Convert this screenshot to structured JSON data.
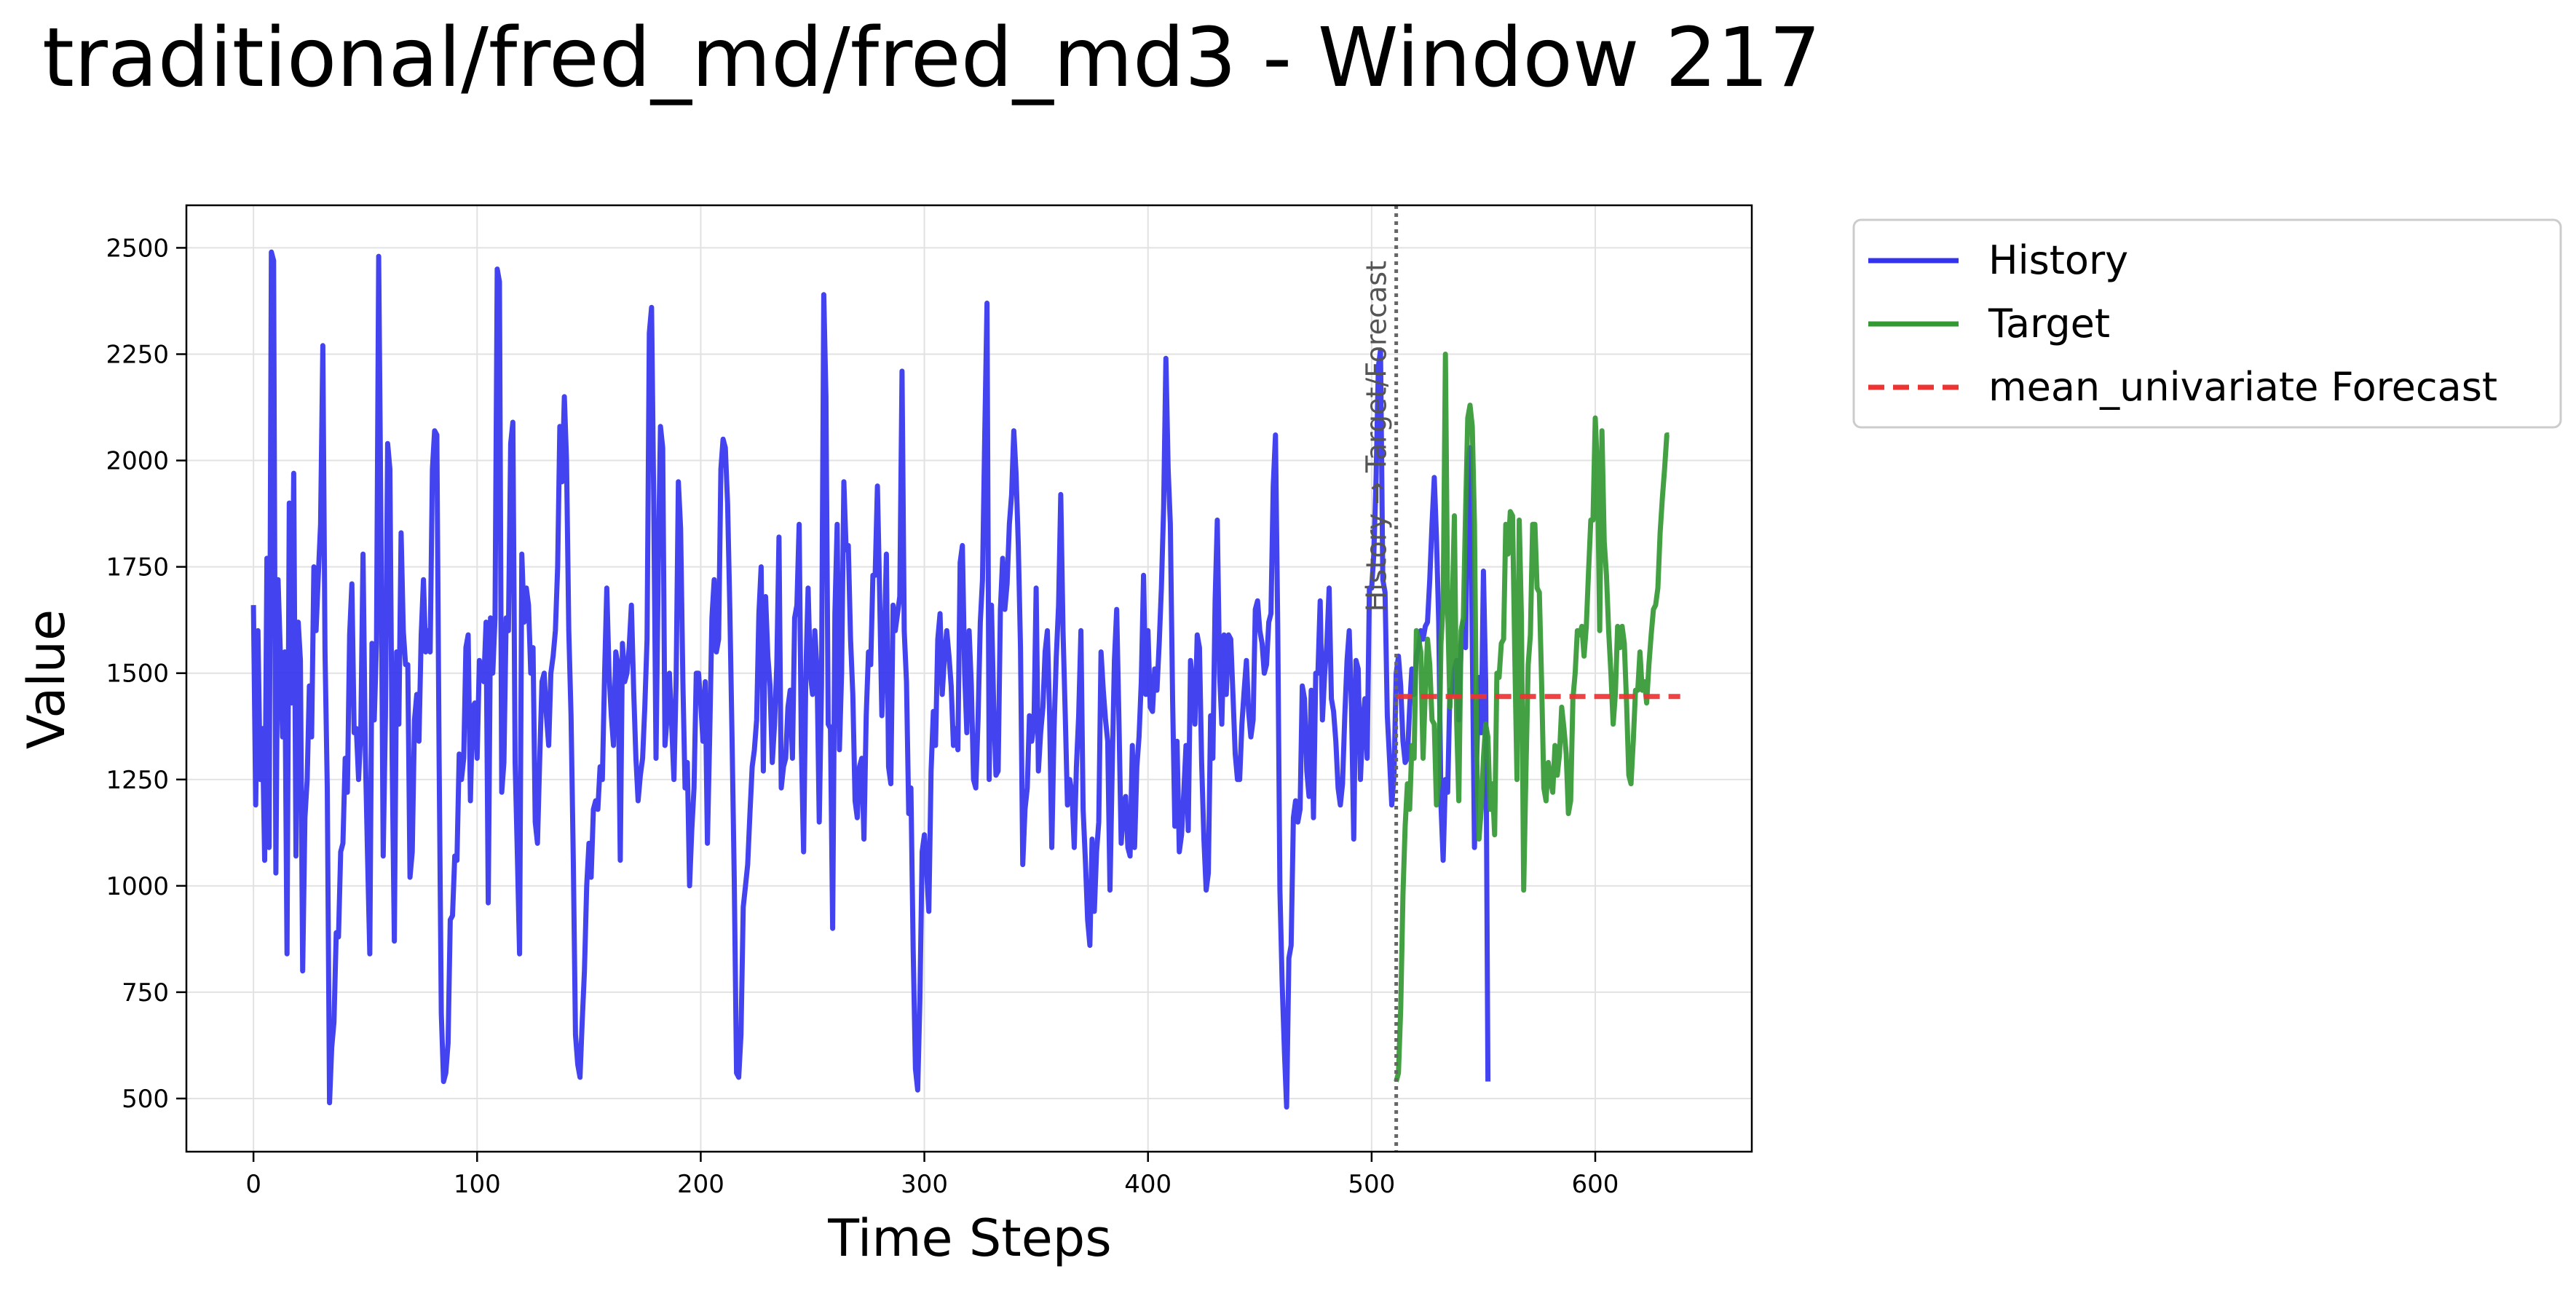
{
  "chart_data": {
    "type": "line",
    "title": "traditional/fred_md/fred_md3 - Window 217",
    "xlabel": "Time Steps",
    "ylabel": "Value",
    "xlim": [
      -30,
      670
    ],
    "ylim": [
      375,
      2600
    ],
    "xticks": [
      0,
      100,
      200,
      300,
      400,
      500,
      600
    ],
    "yticks": [
      500,
      750,
      1000,
      1250,
      1500,
      1750,
      2000,
      2250,
      2500
    ],
    "grid": true,
    "legend_position": "outside-top-right",
    "split_annotation": "History → Target/Forecast",
    "split_x": 511,
    "colors": {
      "History": "#3333ee",
      "Target": "#339933",
      "mean_univariate Forecast": "#ee3333",
      "split": "#666666"
    },
    "series": [
      {
        "name": "History",
        "style": "solid",
        "x_start": 0,
        "values": [
          1660,
          1190,
          1600,
          1250,
          1370,
          1060,
          1770,
          1090,
          2490,
          2470,
          1030,
          1720,
          1550,
          1350,
          1550,
          840,
          1900,
          1430,
          1970,
          1070,
          1620,
          1530,
          800,
          1160,
          1250,
          1470,
          1350,
          1750,
          1600,
          1730,
          1850,
          2270,
          1550,
          1230,
          490,
          620,
          680,
          890,
          880,
          1080,
          1100,
          1300,
          1220,
          1590,
          1710,
          1360,
          1370,
          1250,
          1370,
          1780,
          1320,
          1070,
          840,
          1570,
          1390,
          1570,
          2480,
          1850,
          1070,
          1400,
          2040,
          1980,
          1300,
          870,
          1550,
          1380,
          1830,
          1600,
          1520,
          1520,
          1020,
          1080,
          1390,
          1450,
          1340,
          1590,
          1720,
          1550,
          1600,
          1550,
          1980,
          2070,
          2060,
          1300,
          700,
          540,
          560,
          630,
          920,
          930,
          1070,
          1060,
          1310,
          1250,
          1300,
          1560,
          1590,
          1200,
          1420,
          1430,
          1300,
          1530,
          1500,
          1480,
          1620,
          960,
          1630,
          1500,
          1630,
          2450,
          2420,
          1220,
          1290,
          1630,
          1600,
          2040,
          2090,
          1290,
          1070,
          840,
          1780,
          1620,
          1700,
          1660,
          1500,
          1560,
          1150,
          1100,
          1300,
          1480,
          1500,
          1400,
          1330,
          1500,
          1540,
          1600,
          1750,
          2080,
          1950,
          2150,
          2000,
          1600,
          1400,
          1060,
          650,
          580,
          550,
          680,
          800,
          1000,
          1100,
          1020,
          1180,
          1200,
          1180,
          1280,
          1250,
          1500,
          1700,
          1500,
          1400,
          1330,
          1550,
          1520,
          1060,
          1570,
          1480,
          1500,
          1560,
          1660,
          1460,
          1300,
          1200,
          1260,
          1300,
          1420,
          1580,
          2300,
          2360,
          1900,
          1300,
          1750,
          2080,
          2030,
          1330,
          1400,
          1500,
          1380,
          1250,
          1480,
          1950,
          1840,
          1480,
          1230,
          1290,
          1000,
          1130,
          1230,
          1500,
          1500,
          1430,
          1340,
          1480,
          1100,
          1350,
          1630,
          1720,
          1550,
          1580,
          1980,
          2050,
          2030,
          1900,
          1650,
          1350,
          1010,
          560,
          550,
          650,
          950,
          1000,
          1050,
          1170,
          1280,
          1320,
          1390,
          1640,
          1750,
          1270,
          1680,
          1540,
          1470,
          1290,
          1380,
          1520,
          1820,
          1230,
          1280,
          1300,
          1420,
          1460,
          1300,
          1630,
          1660,
          1850,
          1330,
          1080,
          1500,
          1700,
          1500,
          1450,
          1600,
          1510,
          1150,
          1470,
          2390,
          2150,
          1380,
          1370,
          900,
          1640,
          1850,
          1320,
          1500,
          1950,
          1790,
          1800,
          1580,
          1450,
          1200,
          1160,
          1280,
          1300,
          1110,
          1400,
          1550,
          1520,
          1730,
          1730,
          1940,
          1690,
          1400,
          1550,
          1780,
          1280,
          1240,
          1660,
          1600,
          1640,
          1680,
          2210,
          1600,
          1480,
          1170,
          1230,
          850,
          570,
          520,
          730,
          1080,
          1120,
          1040,
          940,
          1270,
          1410,
          1330,
          1580,
          1640,
          1450,
          1540,
          1600,
          1540,
          1470,
          1330,
          1370,
          1320,
          1760,
          1800,
          1500,
          1360,
          1600,
          1470,
          1250,
          1230,
          1390,
          1620,
          1720,
          2060,
          2370,
          1250,
          1660,
          1420,
          1260,
          1270,
          1650,
          1770,
          1650,
          1710,
          1850,
          1920,
          2070,
          1970,
          1800,
          1560,
          1050,
          1180,
          1230,
          1400,
          1340,
          1380,
          1700,
          1270,
          1360,
          1420,
          1550,
          1600,
          1400,
          1090,
          1370,
          1540,
          1660,
          1920,
          1600,
          1400,
          1190,
          1250,
          1220,
          1090,
          1280,
          1400,
          1600,
          1180,
          1060,
          920,
          860,
          1110,
          940,
          1080,
          1150,
          1550,
          1460,
          1390,
          1340,
          990,
          1280,
          1530,
          1650,
          1390,
          1100,
          1180,
          1210,
          1090,
          1070,
          1330,
          1090,
          1280,
          1350,
          1480,
          1730,
          1450,
          1600,
          1420,
          1410,
          1510,
          1460,
          1570,
          1700,
          1890,
          2240,
          1980,
          1850,
          1440,
          1140,
          1340,
          1080,
          1120,
          1220,
          1330,
          1130,
          1530,
          1470,
          1380,
          1590,
          1560,
          1290,
          1110,
          990,
          1030,
          1400,
          1300,
          1670,
          1860,
          1500,
          1380,
          1590,
          1450,
          1590,
          1580,
          1450,
          1310,
          1250,
          1250,
          1380,
          1460,
          1530,
          1410,
          1350,
          1390,
          1650,
          1670,
          1600,
          1570,
          1500,
          1520,
          1620,
          1640,
          1940,
          2060,
          1610,
          990,
          770,
          610,
          480,
          830,
          860,
          1160,
          1200,
          1150,
          1180,
          1470,
          1440,
          1270,
          1210,
          1460,
          1160,
          1500,
          1500,
          1670,
          1390,
          1500,
          1570,
          1700,
          1440,
          1410,
          1340,
          1230,
          1190,
          1240,
          1400,
          1530,
          1600,
          1420,
          1110,
          1530,
          1510,
          1250,
          1380,
          1440,
          1300,
          1700,
          1700,
          1780,
          1960,
          2220,
          2260,
          1720,
          1690,
          1400,
          1300,
          1190,
          1260,
          1500,
          1540,
          1470,
          1340,
          1290,
          1300,
          1420,
          1510,
          1450,
          1540,
          1560,
          1600,
          1580,
          1610,
          1620,
          1720,
          1850,
          1960,
          1820,
          1620,
          1190,
          1060,
          1250,
          1220,
          1460,
          1450,
          1510,
          1530,
          1390,
          1560,
          1620,
          1560,
          1990,
          2030,
          1570,
          1090,
          1300,
          1490,
          1360,
          1740,
          1480,
          540
        ]
      },
      {
        "name": "Target",
        "style": "solid",
        "x_start": 511,
        "values": [
          540,
          560,
          710,
          980,
          1140,
          1240,
          1180,
          1330,
          1300,
          1600,
          1580,
          1550,
          1300,
          1460,
          1580,
          1520,
          1390,
          1380,
          1190,
          1250,
          1570,
          1660,
          2250,
          1650,
          1420,
          1640,
          1870,
          1390,
          1200,
          1600,
          1630,
          1880,
          2100,
          2130,
          2080,
          1850,
          1300,
          1110,
          1180,
          1300,
          1380,
          1350,
          1180,
          1240,
          1120,
          1500,
          1490,
          1570,
          1580,
          1850,
          1780,
          1880,
          1870,
          1550,
          1250,
          1860,
          1630,
          990,
          1270,
          1520,
          1590,
          1850,
          1850,
          1700,
          1690,
          1480,
          1230,
          1200,
          1290,
          1250,
          1220,
          1330,
          1260,
          1310,
          1420,
          1370,
          1310,
          1170,
          1200,
          1440,
          1500,
          1600,
          1590,
          1610,
          1540,
          1610,
          1740,
          1860,
          1860,
          2100,
          1970,
          1600,
          2070,
          1810,
          1730,
          1600,
          1500,
          1380,
          1450,
          1610,
          1560,
          1610,
          1570,
          1430,
          1260,
          1240,
          1340,
          1460,
          1460,
          1550,
          1460,
          1480,
          1430,
          1520,
          1590,
          1650,
          1660,
          1700,
          1830,
          1910,
          1980,
          2060,
          2060
        ]
      },
      {
        "name": "mean_univariate Forecast",
        "style": "dashed",
        "x_start": 511,
        "x_end": 638,
        "constant": 1445
      }
    ]
  }
}
